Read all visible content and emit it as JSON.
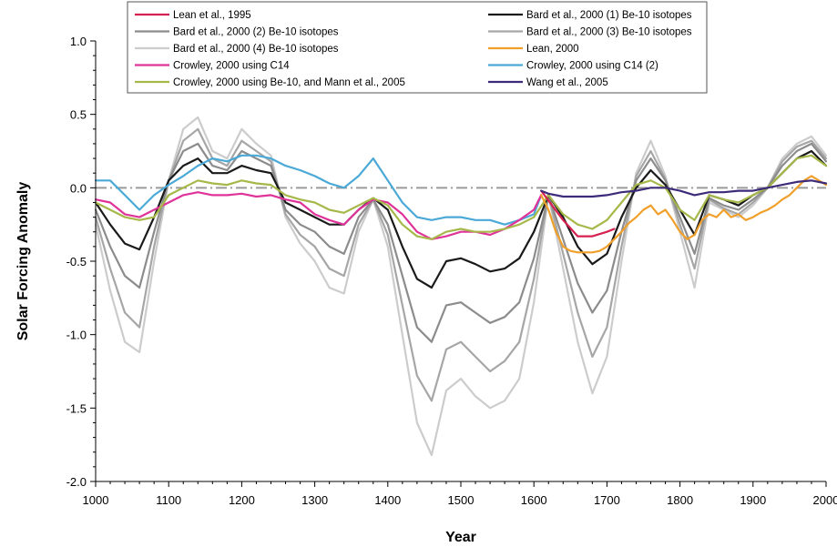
{
  "chart_data": {
    "type": "line",
    "xlabel": "Year",
    "ylabel": "Solar Forcing Anomaly",
    "xlim": [
      1000,
      2000
    ],
    "ylim": [
      -2.0,
      1.0
    ],
    "xticks": [
      1000,
      1100,
      1200,
      1300,
      1400,
      1500,
      1600,
      1700,
      1800,
      1900,
      2000
    ],
    "xtick_labels": [
      "1000",
      "1100",
      "1200",
      "1300",
      "1400",
      "1500",
      "1600",
      "1700",
      "1800",
      "1900",
      "2000"
    ],
    "yticks": [
      1.0,
      0.5,
      0.0,
      -0.5,
      -1.0,
      -1.5,
      -2.0
    ],
    "ytick_labels": [
      "1.0",
      "0.5",
      "0.0",
      "-0.5",
      "-1.0",
      "-1.5",
      "-2.0"
    ],
    "zero_line": {
      "y": 0.0,
      "style": "dash-dot",
      "color": "#9a9a9a"
    },
    "grid": false,
    "legend_position": "top",
    "series": [
      {
        "name": "Lean et al., 1995",
        "color": "#d6204f",
        "x": [
          1610,
          1640,
          1660,
          1680,
          1700,
          1710
        ],
        "y": [
          -0.02,
          -0.22,
          -0.33,
          -0.33,
          -0.3,
          -0.28
        ]
      },
      {
        "name": "Bard et al., 2000 (1) Be-10 isotopes",
        "color": "#1a1a1a",
        "x": [
          1000,
          1020,
          1040,
          1060,
          1080,
          1100,
          1120,
          1140,
          1160,
          1180,
          1200,
          1220,
          1240,
          1260,
          1280,
          1300,
          1320,
          1340,
          1360,
          1380,
          1400,
          1420,
          1440,
          1460,
          1480,
          1500,
          1520,
          1540,
          1560,
          1580,
          1600,
          1620,
          1640,
          1660,
          1680,
          1700,
          1720,
          1740,
          1760,
          1780,
          1800,
          1820,
          1840,
          1860,
          1880,
          1900,
          1920,
          1940,
          1960,
          1980,
          2000
        ],
        "y": [
          -0.1,
          -0.25,
          -0.38,
          -0.42,
          -0.2,
          0.05,
          0.15,
          0.2,
          0.1,
          0.1,
          0.15,
          0.12,
          0.1,
          -0.1,
          -0.15,
          -0.2,
          -0.25,
          -0.25,
          -0.15,
          -0.07,
          -0.15,
          -0.4,
          -0.62,
          -0.68,
          -0.5,
          -0.48,
          -0.52,
          -0.57,
          -0.55,
          -0.48,
          -0.3,
          -0.05,
          -0.2,
          -0.4,
          -0.52,
          -0.45,
          -0.2,
          0.0,
          0.12,
          0.02,
          -0.15,
          -0.32,
          -0.05,
          -0.08,
          -0.12,
          -0.05,
          0.0,
          0.1,
          0.2,
          0.25,
          0.15
        ]
      },
      {
        "name": "Bard et al., 2000 (2) Be-10 isotopes",
        "color": "#8c8c8c",
        "x": [
          1000,
          1020,
          1040,
          1060,
          1080,
          1100,
          1120,
          1140,
          1160,
          1180,
          1200,
          1220,
          1240,
          1260,
          1280,
          1300,
          1320,
          1340,
          1360,
          1380,
          1400,
          1420,
          1440,
          1460,
          1480,
          1500,
          1520,
          1540,
          1560,
          1580,
          1600,
          1620,
          1640,
          1660,
          1680,
          1700,
          1720,
          1740,
          1760,
          1780,
          1800,
          1820,
          1840,
          1860,
          1880,
          1900,
          1920,
          1940,
          1960,
          1980,
          2000
        ],
        "y": [
          -0.15,
          -0.4,
          -0.6,
          -0.68,
          -0.3,
          0.05,
          0.25,
          0.3,
          0.15,
          0.12,
          0.25,
          0.2,
          0.15,
          -0.15,
          -0.25,
          -0.3,
          -0.4,
          -0.45,
          -0.2,
          -0.08,
          -0.25,
          -0.6,
          -0.95,
          -1.05,
          -0.8,
          -0.78,
          -0.85,
          -0.92,
          -0.88,
          -0.78,
          -0.48,
          -0.05,
          -0.35,
          -0.65,
          -0.85,
          -0.7,
          -0.3,
          0.05,
          0.2,
          0.05,
          -0.2,
          -0.45,
          -0.07,
          -0.12,
          -0.15,
          -0.08,
          0.0,
          0.15,
          0.25,
          0.3,
          0.18
        ]
      },
      {
        "name": "Bard et al., 2000 (3) Be-10 isotopes",
        "color": "#a6a6a6",
        "x": [
          1000,
          1020,
          1040,
          1060,
          1080,
          1100,
          1120,
          1140,
          1160,
          1180,
          1200,
          1220,
          1240,
          1260,
          1280,
          1300,
          1320,
          1340,
          1360,
          1380,
          1400,
          1420,
          1440,
          1460,
          1480,
          1500,
          1520,
          1540,
          1560,
          1580,
          1600,
          1620,
          1640,
          1660,
          1680,
          1700,
          1720,
          1740,
          1760,
          1780,
          1800,
          1820,
          1840,
          1860,
          1880,
          1900,
          1920,
          1940,
          1960,
          1980,
          2000
        ],
        "y": [
          -0.2,
          -0.55,
          -0.85,
          -0.95,
          -0.4,
          0.05,
          0.32,
          0.4,
          0.2,
          0.15,
          0.32,
          0.25,
          0.18,
          -0.18,
          -0.32,
          -0.4,
          -0.55,
          -0.6,
          -0.25,
          -0.08,
          -0.32,
          -0.8,
          -1.28,
          -1.45,
          -1.1,
          -1.05,
          -1.15,
          -1.25,
          -1.18,
          -1.05,
          -0.62,
          -0.05,
          -0.45,
          -0.85,
          -1.15,
          -0.95,
          -0.4,
          0.08,
          0.25,
          0.06,
          -0.25,
          -0.55,
          -0.08,
          -0.14,
          -0.18,
          -0.1,
          0.0,
          0.18,
          0.28,
          0.32,
          0.2
        ]
      },
      {
        "name": "Bard et al., 2000 (4) Be-10 isotopes",
        "color": "#cccccc",
        "x": [
          1000,
          1020,
          1040,
          1060,
          1080,
          1100,
          1120,
          1140,
          1160,
          1180,
          1200,
          1220,
          1240,
          1260,
          1280,
          1300,
          1320,
          1340,
          1360,
          1380,
          1400,
          1420,
          1440,
          1460,
          1480,
          1500,
          1520,
          1540,
          1560,
          1580,
          1600,
          1620,
          1640,
          1660,
          1680,
          1700,
          1720,
          1740,
          1760,
          1780,
          1800,
          1820,
          1840,
          1860,
          1880,
          1900,
          1920,
          1940,
          1960,
          1980,
          2000
        ],
        "y": [
          -0.25,
          -0.7,
          -1.05,
          -1.12,
          -0.5,
          0.05,
          0.4,
          0.48,
          0.25,
          0.2,
          0.4,
          0.3,
          0.22,
          -0.2,
          -0.38,
          -0.5,
          -0.68,
          -0.72,
          -0.3,
          -0.08,
          -0.4,
          -1.0,
          -1.6,
          -1.82,
          -1.38,
          -1.3,
          -1.42,
          -1.5,
          -1.45,
          -1.3,
          -0.78,
          -0.05,
          -0.55,
          -1.05,
          -1.4,
          -1.15,
          -0.5,
          0.1,
          0.32,
          0.08,
          -0.3,
          -0.68,
          -0.1,
          -0.15,
          -0.2,
          -0.12,
          0.0,
          0.2,
          0.3,
          0.35,
          0.22
        ]
      },
      {
        "name": "Lean, 2000",
        "color": "#f0a02a",
        "x": [
          1610,
          1620,
          1630,
          1640,
          1650,
          1660,
          1670,
          1680,
          1690,
          1700,
          1710,
          1720,
          1730,
          1740,
          1750,
          1760,
          1770,
          1780,
          1790,
          1800,
          1810,
          1820,
          1830,
          1840,
          1850,
          1860,
          1870,
          1880,
          1890,
          1900,
          1910,
          1920,
          1930,
          1940,
          1950,
          1960,
          1970,
          1980,
          1990,
          2000
        ],
        "y": [
          -0.05,
          -0.15,
          -0.3,
          -0.4,
          -0.43,
          -0.44,
          -0.44,
          -0.44,
          -0.43,
          -0.4,
          -0.35,
          -0.3,
          -0.24,
          -0.2,
          -0.15,
          -0.12,
          -0.18,
          -0.15,
          -0.22,
          -0.3,
          -0.35,
          -0.32,
          -0.22,
          -0.18,
          -0.2,
          -0.15,
          -0.2,
          -0.18,
          -0.22,
          -0.2,
          -0.17,
          -0.15,
          -0.12,
          -0.08,
          -0.05,
          0.0,
          0.05,
          0.08,
          0.05,
          0.02
        ]
      },
      {
        "name": "Crowley, 2000 using C14",
        "color": "#e0339a",
        "x": [
          1000,
          1020,
          1040,
          1060,
          1080,
          1100,
          1120,
          1140,
          1160,
          1180,
          1200,
          1220,
          1240,
          1260,
          1280,
          1300,
          1320,
          1340,
          1360,
          1380,
          1400,
          1420,
          1440,
          1460,
          1480,
          1500,
          1520,
          1540,
          1560,
          1580,
          1600,
          1610
        ],
        "y": [
          -0.08,
          -0.1,
          -0.18,
          -0.2,
          -0.15,
          -0.1,
          -0.05,
          -0.03,
          -0.05,
          -0.05,
          -0.04,
          -0.06,
          -0.05,
          -0.08,
          -0.1,
          -0.18,
          -0.22,
          -0.25,
          -0.15,
          -0.08,
          -0.1,
          -0.18,
          -0.3,
          -0.35,
          -0.33,
          -0.3,
          -0.3,
          -0.32,
          -0.28,
          -0.22,
          -0.15,
          -0.05
        ]
      },
      {
        "name": "Crowley, 2000 using C14 (2)",
        "color": "#4aa9d6",
        "x": [
          1000,
          1020,
          1040,
          1060,
          1080,
          1100,
          1120,
          1140,
          1160,
          1180,
          1200,
          1220,
          1240,
          1260,
          1280,
          1300,
          1320,
          1340,
          1360,
          1380,
          1400,
          1420,
          1440,
          1460,
          1480,
          1500,
          1520,
          1540,
          1560,
          1580,
          1600,
          1610
        ],
        "y": [
          0.05,
          0.05,
          -0.05,
          -0.15,
          -0.05,
          0.02,
          0.08,
          0.15,
          0.2,
          0.18,
          0.22,
          0.22,
          0.2,
          0.15,
          0.12,
          0.08,
          0.03,
          0.0,
          0.08,
          0.2,
          0.05,
          -0.1,
          -0.2,
          -0.22,
          -0.2,
          -0.2,
          -0.22,
          -0.22,
          -0.25,
          -0.22,
          -0.18,
          -0.05
        ]
      },
      {
        "name": "Crowley, 2000 using Be-10, and Mann et al., 2005",
        "color": "#a7b84a",
        "x": [
          1000,
          1020,
          1040,
          1060,
          1080,
          1100,
          1120,
          1140,
          1160,
          1180,
          1200,
          1220,
          1240,
          1260,
          1280,
          1300,
          1320,
          1340,
          1360,
          1380,
          1400,
          1420,
          1440,
          1460,
          1480,
          1500,
          1520,
          1540,
          1560,
          1580,
          1600,
          1620,
          1640,
          1660,
          1680,
          1700,
          1720,
          1740,
          1760,
          1780,
          1800,
          1820,
          1840,
          1860,
          1880,
          1900,
          1920,
          1940,
          1960,
          1980,
          2000
        ],
        "y": [
          -0.1,
          -0.15,
          -0.2,
          -0.22,
          -0.2,
          -0.05,
          0.0,
          0.05,
          0.03,
          0.02,
          0.05,
          0.03,
          0.02,
          -0.05,
          -0.08,
          -0.1,
          -0.15,
          -0.17,
          -0.12,
          -0.07,
          -0.12,
          -0.25,
          -0.33,
          -0.35,
          -0.3,
          -0.28,
          -0.3,
          -0.3,
          -0.28,
          -0.25,
          -0.2,
          -0.05,
          -0.18,
          -0.25,
          -0.28,
          -0.22,
          -0.1,
          0.02,
          0.05,
          0.0,
          -0.15,
          -0.22,
          -0.05,
          -0.08,
          -0.1,
          -0.05,
          0.0,
          0.1,
          0.2,
          0.22,
          0.15
        ]
      },
      {
        "name": "Wang et al., 2005",
        "color": "#3d2b7a",
        "x": [
          1610,
          1620,
          1640,
          1660,
          1680,
          1700,
          1720,
          1740,
          1760,
          1780,
          1800,
          1820,
          1840,
          1860,
          1880,
          1900,
          1920,
          1940,
          1960,
          1980,
          2000
        ],
        "y": [
          -0.02,
          -0.04,
          -0.06,
          -0.06,
          -0.06,
          -0.05,
          -0.03,
          -0.02,
          0.0,
          0.0,
          -0.02,
          -0.05,
          -0.03,
          -0.03,
          -0.02,
          -0.02,
          0.0,
          0.02,
          0.04,
          0.05,
          0.03
        ]
      }
    ]
  }
}
